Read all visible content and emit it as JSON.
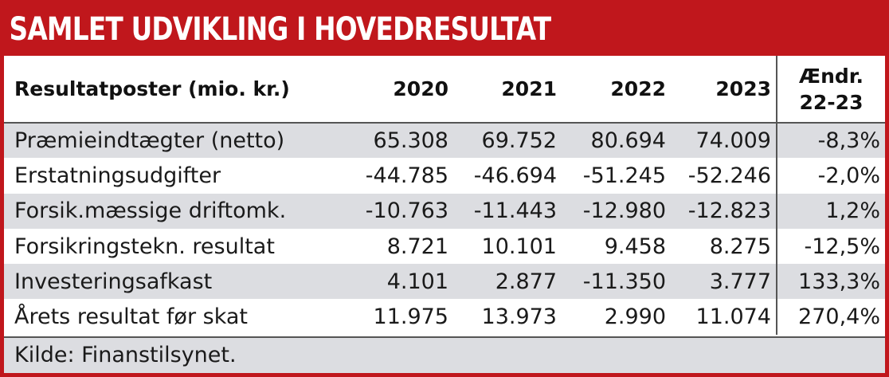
{
  "title": "SAMLET UDVIKLING I HOVEDRESULTAT",
  "table": {
    "columns": [
      "Resultatposter (mio. kr.)",
      "2020",
      "2021",
      "2022",
      "2023"
    ],
    "change_header": {
      "line1": "Ændr.",
      "line2": "22-23"
    },
    "rows": [
      {
        "label": "Præmieindtægter (netto)",
        "values": [
          "65.308",
          "69.752",
          "80.694",
          "74.009"
        ],
        "change": "-8,3%"
      },
      {
        "label": "Erstatningsudgifter",
        "values": [
          "-44.785",
          "-46.694",
          "-51.245",
          "-52.246"
        ],
        "change": "-2,0%"
      },
      {
        "label": "Forsik.mæssige driftomk.",
        "values": [
          "-10.763",
          "-11.443",
          "-12.980",
          "-12.823"
        ],
        "change": "1,2%"
      },
      {
        "label": "Forsikringstekn. resultat",
        "values": [
          "8.721",
          "10.101",
          "9.458",
          "8.275"
        ],
        "change": "-12,5%"
      },
      {
        "label": "Investeringsafkast",
        "values": [
          "4.101",
          "2.877",
          "-11.350",
          "3.777"
        ],
        "change": "133,3%"
      },
      {
        "label": "Årets resultat før skat",
        "values": [
          "11.975",
          "13.973",
          "2.990",
          "11.074"
        ],
        "change": "270,4%"
      }
    ]
  },
  "source": "Kilde: Finanstilsynet.",
  "colors": {
    "accent": "#c0171c",
    "shaded_row": "#dcdde1"
  }
}
